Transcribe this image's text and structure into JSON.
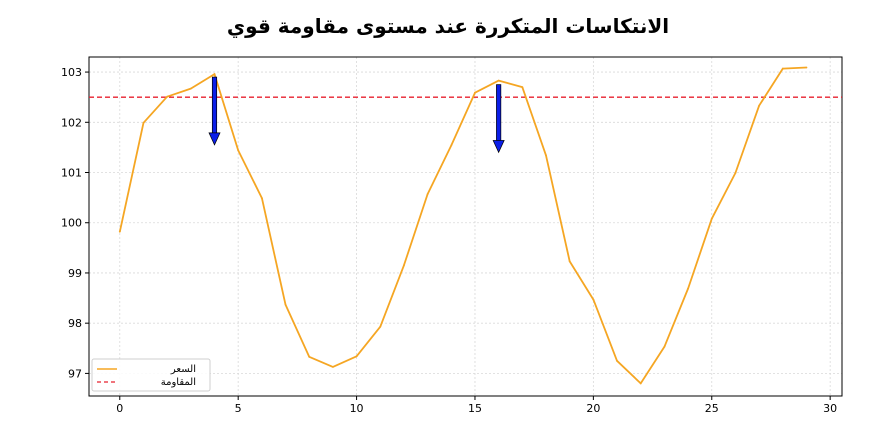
{
  "chart_data": {
    "type": "line",
    "title": "الانتكاسات المتكررة عند مستوى مقاومة قوي",
    "xlabel": "",
    "ylabel": "",
    "xlim": [
      -1.3,
      30.5
    ],
    "ylim": [
      96.55,
      103.3
    ],
    "xticks": [
      0,
      5,
      10,
      15,
      20,
      25,
      30
    ],
    "yticks": [
      97,
      98,
      99,
      100,
      101,
      102,
      103
    ],
    "grid": true,
    "series": [
      {
        "name": "السعر",
        "color": "#f5a623",
        "x": [
          0,
          1,
          2,
          3,
          4,
          5,
          6,
          7,
          8,
          9,
          10,
          11,
          12,
          13,
          14,
          15,
          16,
          17,
          18,
          19,
          20,
          21,
          22,
          23,
          24,
          25,
          26,
          27,
          28,
          29
        ],
        "values": [
          99.82,
          101.99,
          102.51,
          102.67,
          102.96,
          101.44,
          100.49,
          98.37,
          97.33,
          97.13,
          97.34,
          97.93,
          99.15,
          100.57,
          101.54,
          102.59,
          102.83,
          102.7,
          101.34,
          99.23,
          98.47,
          97.25,
          96.8,
          97.53,
          98.69,
          100.08,
          100.99,
          102.33,
          103.07,
          103.09
        ]
      }
    ],
    "reference_lines": [
      {
        "name": "المقاومة",
        "y": 102.5,
        "color": "#e8202f",
        "style": "dashed"
      }
    ],
    "annotations": [
      {
        "type": "arrow",
        "x": 4,
        "y_from": 102.9,
        "y_to": 101.55,
        "color": "#0b1ee8"
      },
      {
        "type": "arrow",
        "x": 16,
        "y_from": 102.75,
        "y_to": 101.4,
        "color": "#0b1ee8"
      }
    ],
    "legend": {
      "position": "bottom-left"
    }
  }
}
